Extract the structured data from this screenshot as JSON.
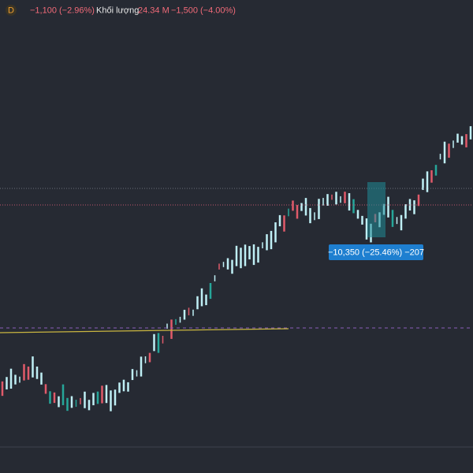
{
  "header": {
    "interval_badge": "D",
    "change": "−1,100 (−2.96%)",
    "volume_label": "Khối lượng",
    "volume_value": "24.34 M",
    "volume_change": "−1,500 (−4.00%)"
  },
  "measure": {
    "label": "−10,350 (−25.46%) −207"
  }
}
